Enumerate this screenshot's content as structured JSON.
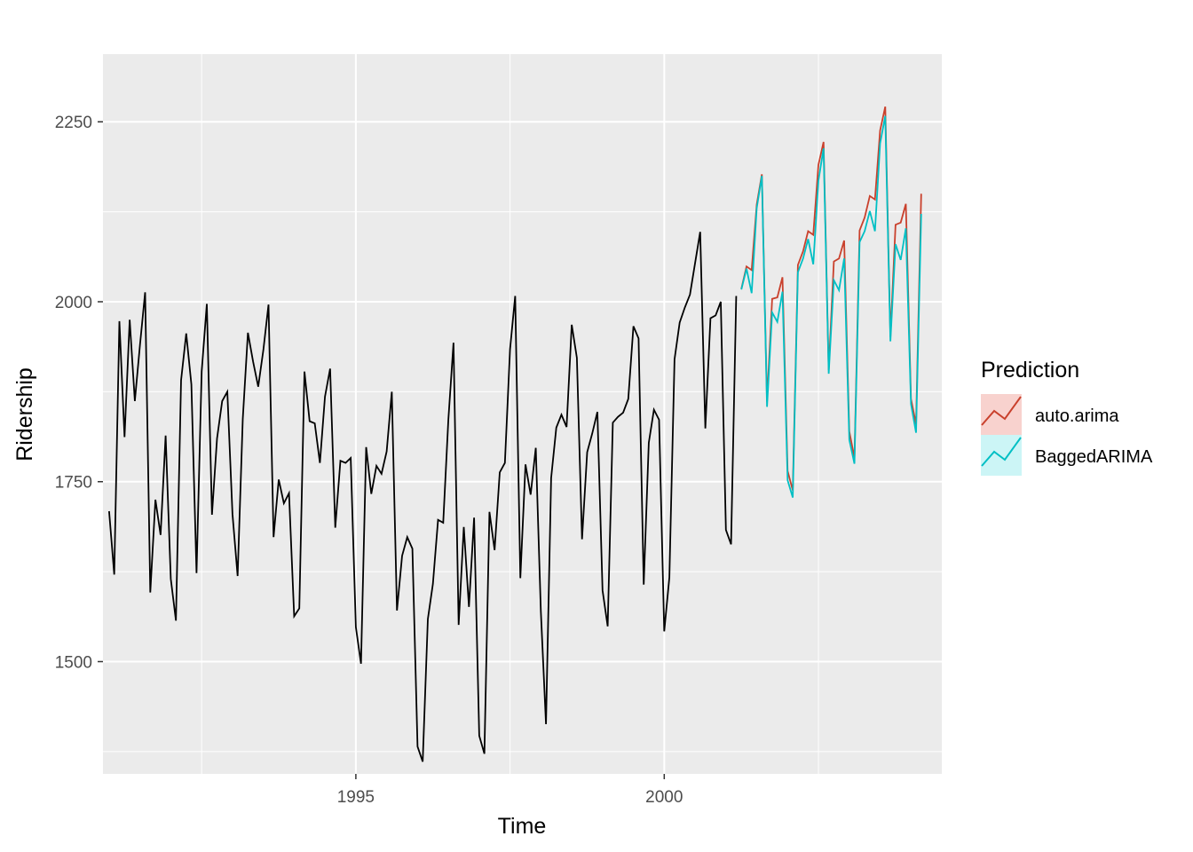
{
  "chart_data": {
    "type": "line",
    "title": "",
    "xlabel": "Time",
    "ylabel": "Ridership",
    "xlim": [
      1990.9,
      2004.5
    ],
    "ylim": [
      1344,
      2344
    ],
    "x_ticks": [
      1995,
      2000
    ],
    "x_tick_labels": [
      "1995",
      "2000"
    ],
    "y_ticks": [
      1500,
      1750,
      2000,
      2250
    ],
    "y_tick_labels": [
      "1500",
      "1750",
      "2000",
      "2250"
    ],
    "grid": true,
    "legend": {
      "title": "Prediction",
      "position": "right",
      "items": [
        {
          "label": "auto.arima",
          "color": "#F8766D",
          "line_color": "#C9402C"
        },
        {
          "label": "BaggedARIMA",
          "color": "#00BFC4",
          "line_color": "#00BFC4"
        }
      ]
    },
    "history": {
      "start": 1991.0,
      "step": 0.0833333,
      "color": "#000000",
      "values": [
        1709,
        1621,
        1973,
        1812,
        1975,
        1862,
        1940,
        2013,
        1596,
        1725,
        1676,
        1814,
        1615,
        1557,
        1891,
        1956,
        1885,
        1623,
        1903,
        1997,
        1704,
        1810,
        1862,
        1875,
        1705,
        1619,
        1837,
        1957,
        1917,
        1882,
        1933,
        1996,
        1673,
        1753,
        1720,
        1734,
        1563,
        1574,
        1903,
        1834,
        1831,
        1776,
        1868,
        1907,
        1686,
        1779,
        1776,
        1783,
        1548,
        1497,
        1798,
        1733,
        1772,
        1761,
        1792,
        1875,
        1571,
        1647,
        1673,
        1657,
        1382,
        1361,
        1559,
        1608,
        1697,
        1693,
        1836,
        1943,
        1551,
        1687,
        1576,
        1700,
        1397,
        1372,
        1708,
        1655,
        1763,
        1776,
        1934,
        2008,
        1616,
        1774,
        1732,
        1797,
        1570,
        1413,
        1755,
        1825,
        1843,
        1826,
        1968,
        1922,
        1670,
        1791,
        1817,
        1847,
        1599,
        1549,
        1832,
        1840,
        1846,
        1865,
        1966,
        1949,
        1607,
        1804,
        1850,
        1836,
        1542,
        1617,
        1920,
        1971,
        1992,
        2010,
        2054,
        2097,
        1824,
        1977,
        1981,
        2000,
        1683,
        1663,
        2008
      ]
    },
    "forecast_start": 2001.25,
    "series": [
      {
        "name": "auto.arima",
        "color": "#C9402C",
        "values": [
          2018,
          2049,
          2044,
          2135,
          2177,
          1861,
          2004,
          2006,
          2034,
          1765,
          1738,
          2051,
          2070,
          2098,
          2093,
          2190,
          2222,
          1905,
          2056,
          2060,
          2085,
          1820,
          1783,
          2099,
          2117,
          2147,
          2142,
          2238,
          2271,
          1951,
          2107,
          2110,
          2136,
          1865,
          1830,
          2150
        ]
      },
      {
        "name": "BaggedARIMA",
        "color": "#00BFC4",
        "values": [
          2017,
          2046,
          2012,
          2130,
          2175,
          1854,
          1985,
          1972,
          2014,
          1752,
          1728,
          2041,
          2060,
          2087,
          2052,
          2168,
          2213,
          1900,
          2030,
          2016,
          2060,
          1808,
          1775,
          2083,
          2098,
          2126,
          2098,
          2220,
          2258,
          1945,
          2080,
          2058,
          2102,
          1858,
          1818,
          2122
        ]
      }
    ]
  }
}
